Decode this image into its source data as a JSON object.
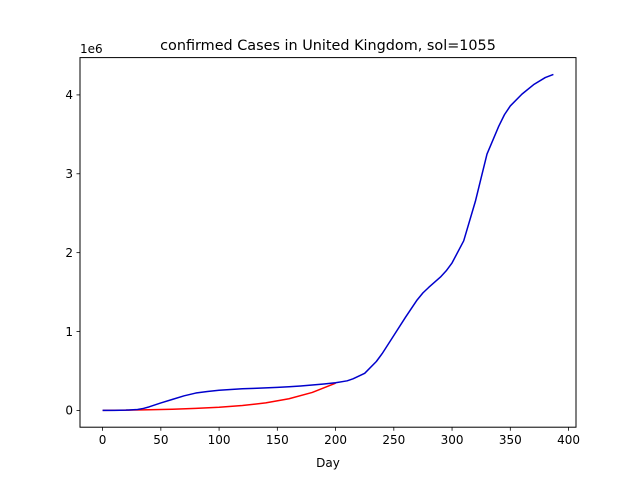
{
  "chart_data": {
    "type": "line",
    "title": "confirmed Cases in United Kingdom, sol=1055",
    "xlabel": "Day",
    "ylabel": "",
    "y_offset_label": "1e6",
    "xlim": [
      -19.4,
      406.4
    ],
    "ylim": [
      -213000,
      4473000
    ],
    "x_ticks": [
      0,
      50,
      100,
      150,
      200,
      250,
      300,
      350,
      400
    ],
    "x_tick_labels": [
      "0",
      "50",
      "100",
      "150",
      "200",
      "250",
      "300",
      "350",
      "400"
    ],
    "y_ticks": [
      0,
      1000000,
      2000000,
      3000000,
      4000000
    ],
    "y_tick_labels": [
      "0",
      "1",
      "2",
      "3",
      "4"
    ],
    "grid": false,
    "series": [
      {
        "color": "#ff0000",
        "x": [
          0,
          20,
          40,
          60,
          80,
          100,
          120,
          140,
          160,
          180,
          200
        ],
        "y": [
          0,
          4000,
          8000,
          15000,
          25000,
          40000,
          62000,
          95000,
          148000,
          228000,
          345000
        ]
      },
      {
        "color": "#0000cc",
        "x": [
          0,
          10,
          20,
          30,
          35,
          40,
          50,
          60,
          70,
          80,
          90,
          100,
          110,
          120,
          130,
          140,
          150,
          160,
          170,
          180,
          190,
          200,
          210,
          215,
          225,
          235,
          240,
          250,
          260,
          270,
          275,
          280,
          290,
          295,
          300,
          310,
          320,
          325,
          330,
          340,
          345,
          350,
          360,
          370,
          380,
          387
        ],
        "y": [
          0,
          1000,
          3000,
          12000,
          25000,
          45000,
          95000,
          140000,
          185000,
          220000,
          240000,
          255000,
          265000,
          275000,
          280000,
          285000,
          292000,
          300000,
          310000,
          322000,
          335000,
          350000,
          375000,
          400000,
          470000,
          620000,
          720000,
          950000,
          1180000,
          1400000,
          1490000,
          1560000,
          1690000,
          1770000,
          1870000,
          2150000,
          2650000,
          2950000,
          3250000,
          3600000,
          3750000,
          3860000,
          4010000,
          4130000,
          4220000,
          4260000
        ]
      }
    ]
  }
}
